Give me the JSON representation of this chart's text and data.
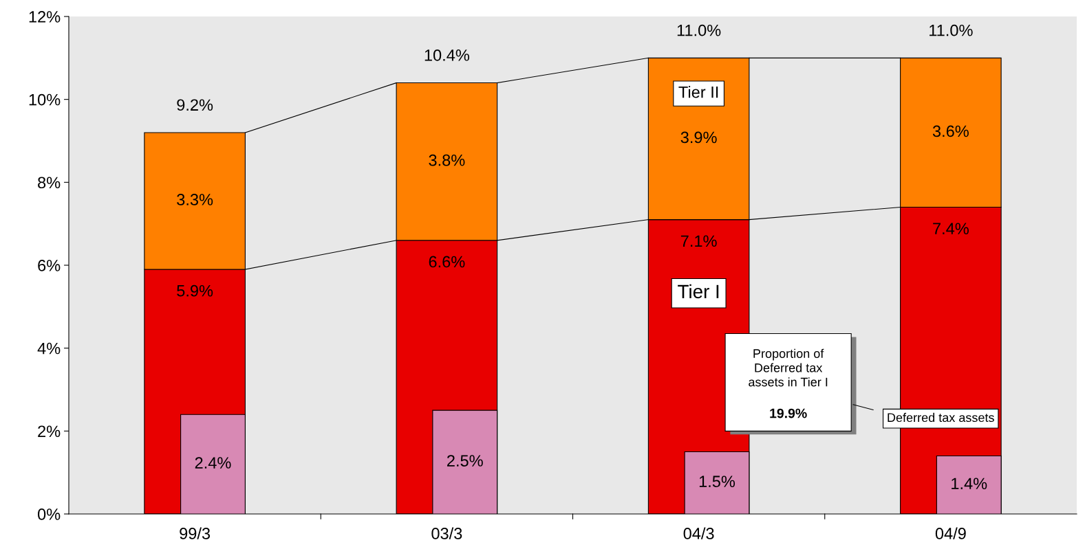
{
  "chart_data": [
    {
      "type": "bar",
      "stacked": true,
      "categories": [
        "99/3",
        "03/3",
        "04/3",
        "04/9"
      ],
      "series": [
        {
          "name": "Tier I",
          "color": "#e80000",
          "values": [
            5.9,
            6.6,
            7.1,
            7.4
          ],
          "value_labels": [
            "5.9%",
            "6.6%",
            "7.1%",
            "7.4%"
          ]
        },
        {
          "name": "Tier II",
          "color": "#ff8000",
          "values": [
            3.3,
            3.8,
            3.9,
            3.6
          ],
          "value_labels": [
            "3.3%",
            "3.8%",
            "3.9%",
            "3.6%"
          ]
        }
      ],
      "totals": [
        "9.2%",
        "10.4%",
        "11.0%",
        "11.0%"
      ],
      "ylim": [
        0,
        12
      ],
      "yticks": [
        {
          "value": 0,
          "label": "0%"
        },
        {
          "value": 2,
          "label": "2%"
        },
        {
          "value": 4,
          "label": "4%"
        },
        {
          "value": 6,
          "label": "6%"
        },
        {
          "value": 8,
          "label": "8%"
        },
        {
          "value": 10,
          "label": "10%"
        },
        {
          "value": 12,
          "label": "12%"
        }
      ],
      "annotations": [
        "Proportion of\nDeferred tax\nassets in Tier I",
        "19.9%"
      ],
      "grid": false,
      "legend": false
    },
    {
      "type": "bar",
      "categories": [
        null,
        null,
        null,
        null
      ],
      "series": [
        {
          "name": "Deferred tax assets",
          "color": "#d889b4",
          "values": [
            2.4,
            2.5,
            1.5,
            1.4
          ],
          "value_labels": [
            "2.4%",
            "2.5%",
            "1.5%",
            "1.4%"
          ]
        }
      ],
      "ylim": [
        0,
        12
      ],
      "tick_labels": false,
      "grid": false,
      "legend": false
    }
  ]
}
